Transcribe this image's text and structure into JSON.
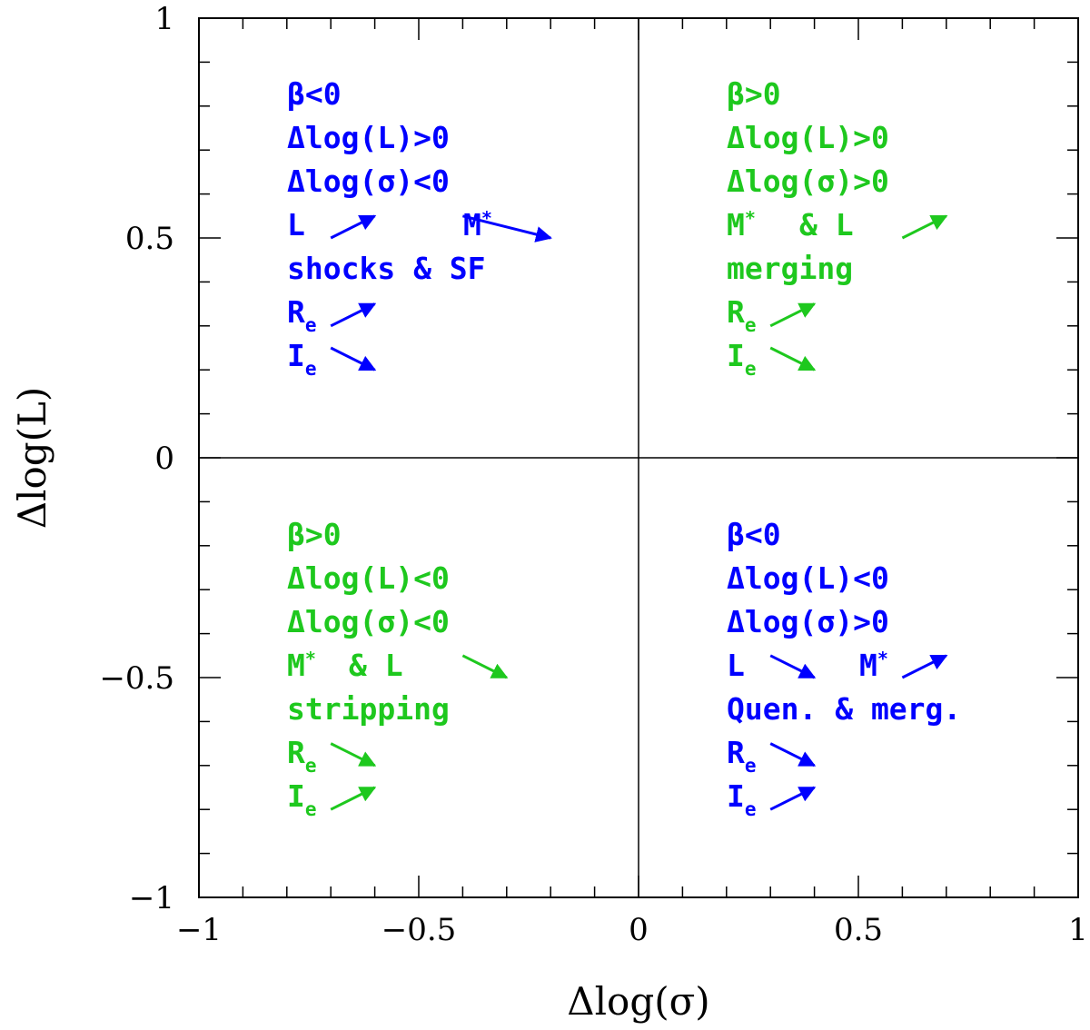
{
  "chart_data": {
    "type": "scatter",
    "xlabel": "Δlog(σ)",
    "ylabel": "Δlog(L)",
    "xlim": [
      -1,
      1
    ],
    "ylim": [
      -1,
      1
    ],
    "x_ticks": [
      -1,
      -0.5,
      0,
      0.5,
      1
    ],
    "y_ticks": [
      -1,
      -0.5,
      0,
      0.5,
      1
    ],
    "x_tick_labels": [
      "−1",
      "−0.5",
      "0",
      "0.5",
      "1"
    ],
    "y_tick_labels": [
      "−1",
      "−0.5",
      "0",
      "0.5",
      "1"
    ],
    "minor_tick_step": 0.1,
    "grid": false,
    "reference_lines": [
      {
        "orientation": "vertical",
        "value": 0
      },
      {
        "orientation": "horizontal",
        "value": 0
      }
    ],
    "colors": {
      "blue": "#0000ff",
      "green": "#1ec81e"
    },
    "quadrants": [
      {
        "id": "top-left",
        "color": "#0000ff",
        "beta": "β<0",
        "dL": "Δlog(L)>0",
        "dsigma": "Δlog(σ)<0",
        "row4_a": "L",
        "row4_b": "M",
        "row4_b_sup": "*",
        "process": "shocks & SF",
        "re_main": "R",
        "re_sub": "e",
        "ie_main": "I",
        "ie_sub": "e",
        "arrows": [
          {
            "x1": -0.7,
            "y1": 0.5,
            "x2": -0.6,
            "y2": 0.55
          },
          {
            "x1": -0.4,
            "y1": 0.55,
            "x2": -0.2,
            "y2": 0.5
          },
          {
            "x1": -0.7,
            "y1": 0.3,
            "x2": -0.6,
            "y2": 0.35
          },
          {
            "x1": -0.7,
            "y1": 0.25,
            "x2": -0.6,
            "y2": 0.2
          }
        ]
      },
      {
        "id": "top-right",
        "color": "#1ec81e",
        "beta": "β>0",
        "dL": "Δlog(L)>0",
        "dsigma": "Δlog(σ)>0",
        "row4_a": "M",
        "row4_a_sup": "*",
        "row4_b": "& L",
        "process": "merging",
        "re_main": "R",
        "re_sub": "e",
        "ie_main": "I",
        "ie_sub": "e",
        "arrows": [
          {
            "x1": 0.6,
            "y1": 0.5,
            "x2": 0.7,
            "y2": 0.55
          },
          {
            "x1": 0.3,
            "y1": 0.3,
            "x2": 0.4,
            "y2": 0.35
          },
          {
            "x1": 0.3,
            "y1": 0.25,
            "x2": 0.4,
            "y2": 0.2
          }
        ]
      },
      {
        "id": "bottom-left",
        "color": "#1ec81e",
        "beta": "β>0",
        "dL": "Δlog(L)<0",
        "dsigma": "Δlog(σ)<0",
        "row4_a": "M",
        "row4_a_sup": "*",
        "row4_b": "& L",
        "process": "stripping",
        "re_main": "R",
        "re_sub": "e",
        "ie_main": "I",
        "ie_sub": "e",
        "arrows": [
          {
            "x1": -0.4,
            "y1": -0.45,
            "x2": -0.3,
            "y2": -0.5
          },
          {
            "x1": -0.7,
            "y1": -0.65,
            "x2": -0.6,
            "y2": -0.7
          },
          {
            "x1": -0.7,
            "y1": -0.8,
            "x2": -0.6,
            "y2": -0.75
          }
        ]
      },
      {
        "id": "bottom-right",
        "color": "#0000ff",
        "beta": "β<0",
        "dL": "Δlog(L)<0",
        "dsigma": "Δlog(σ)>0",
        "row4_a": "L",
        "row4_b": "M",
        "row4_b_sup": "*",
        "process": "Quen. & merg.",
        "re_main": "R",
        "re_sub": "e",
        "ie_main": "I",
        "ie_sub": "e",
        "arrows": [
          {
            "x1": 0.3,
            "y1": -0.45,
            "x2": 0.4,
            "y2": -0.5
          },
          {
            "x1": 0.6,
            "y1": -0.5,
            "x2": 0.7,
            "y2": -0.45
          },
          {
            "x1": 0.3,
            "y1": -0.65,
            "x2": 0.4,
            "y2": -0.7
          },
          {
            "x1": 0.3,
            "y1": -0.8,
            "x2": 0.4,
            "y2": -0.75
          }
        ]
      }
    ]
  }
}
